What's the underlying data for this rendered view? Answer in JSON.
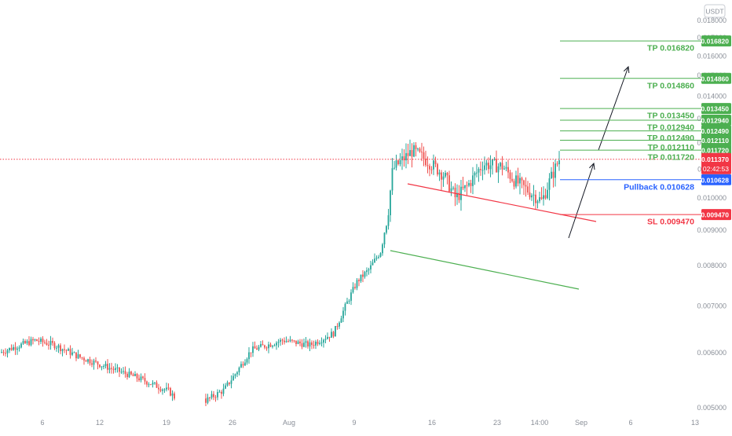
{
  "currency_badge": "USDT",
  "chart_data": {
    "type": "candlestick",
    "y_axis": {
      "min": 0.005,
      "max": 0.018,
      "ticks": [
        0.018,
        0.017,
        0.016,
        0.015,
        0.014,
        0.013,
        0.012,
        0.011,
        0.01,
        0.009,
        0.008,
        0.007,
        0.006,
        0.005
      ],
      "tick_labels": [
        "0.018000",
        "0.017000",
        "0.016000",
        "0.015000",
        "0.014000",
        "0.013000",
        "0.012000",
        "0.011000",
        "0.010000",
        "0.009000",
        "0.008000",
        "0.007000",
        "0.006000",
        "0.005000"
      ],
      "scale": "log"
    },
    "x_axis": {
      "tick_labels": [
        "6",
        "12",
        "19",
        "26",
        "Aug",
        "9",
        "16",
        "23",
        "14:00",
        "Sep",
        "6",
        "13"
      ]
    },
    "current_price": {
      "label": "0.011370",
      "countdown": "02:42:53",
      "value": 0.01137
    },
    "levels": [
      {
        "kind": "tp",
        "label": "TP 0.016820",
        "value": 0.01682,
        "tag": "0.016820"
      },
      {
        "kind": "tp",
        "label": "TP 0.014860",
        "value": 0.01486,
        "tag": "0.014860"
      },
      {
        "kind": "tp",
        "label": "TP 0.013450",
        "value": 0.01345,
        "tag": "0.013450"
      },
      {
        "kind": "tp",
        "label": "TP 0.012940",
        "value": 0.01294,
        "tag": "0.012940"
      },
      {
        "kind": "tp",
        "label": "TP 0.012490",
        "value": 0.01249,
        "tag": "0.012490"
      },
      {
        "kind": "tp",
        "label": "TP 0.012110",
        "value": 0.01211,
        "tag": "0.012110"
      },
      {
        "kind": "tp",
        "label": "TP 0.011720",
        "value": 0.01172,
        "tag": "0.011720"
      },
      {
        "kind": "pullback",
        "label": "Pullback 0.010628",
        "value": 0.010628,
        "tag": "0.010628"
      },
      {
        "kind": "sl",
        "label": "SL 0.009470",
        "value": 0.00947,
        "tag": "0.009470"
      }
    ],
    "colors": {
      "up": "#26a69a",
      "down": "#ef5350",
      "tp": "#4caf50",
      "pullback": "#2962ff",
      "sl": "#f23645",
      "current": "#f23645",
      "channel_top": "#f23645",
      "channel_bottom": "#4caf50",
      "axis_text": "#8a8f98"
    }
  }
}
